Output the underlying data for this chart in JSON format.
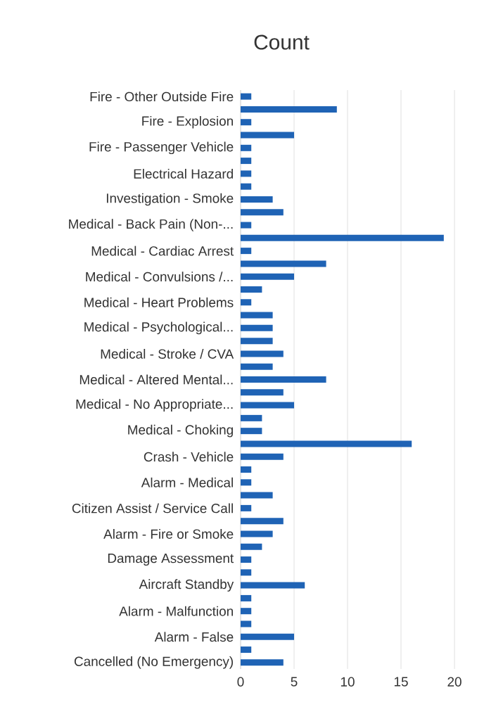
{
  "chart_data": {
    "type": "bar",
    "orientation": "horizontal",
    "title": "Count",
    "categories": [
      "Fire - Other Outside Fire",
      null,
      "Fire - Explosion",
      null,
      "Fire - Passenger Vehicle",
      null,
      "Electrical Hazard",
      null,
      "Investigation - Smoke",
      null,
      "Medical - Back Pain (Non-...",
      null,
      "Medical - Cardiac Arrest",
      null,
      "Medical - Convulsions /...",
      null,
      "Medical - Heart Problems",
      null,
      "Medical - Psychological...",
      null,
      "Medical - Stroke / CVA",
      null,
      "Medical - Altered Mental...",
      null,
      "Medical - No Appropriate...",
      null,
      "Medical - Choking",
      null,
      "Crash - Vehicle",
      null,
      "Alarm - Medical",
      null,
      "Citizen Assist / Service Call",
      null,
      "Alarm - Fire or Smoke",
      null,
      "Damage Assessment",
      null,
      "Aircraft Standby",
      null,
      "Alarm - Malfunction",
      null,
      "Alarm - False",
      null,
      "Cancelled (No Emergency)"
    ],
    "values": [
      1,
      9,
      1,
      5,
      1,
      1,
      1,
      1,
      3,
      4,
      1,
      19,
      1,
      8,
      5,
      2,
      1,
      3,
      3,
      3,
      4,
      3,
      8,
      4,
      5,
      2,
      2,
      16,
      4,
      1,
      1,
      3,
      1,
      4,
      3,
      2,
      1,
      1,
      6,
      1,
      1,
      1,
      5,
      1,
      4
    ],
    "color": "#1f63b5",
    "xlim": [
      0,
      20
    ],
    "xticks": [
      0,
      5,
      10,
      15,
      20
    ],
    "grid": "x"
  }
}
